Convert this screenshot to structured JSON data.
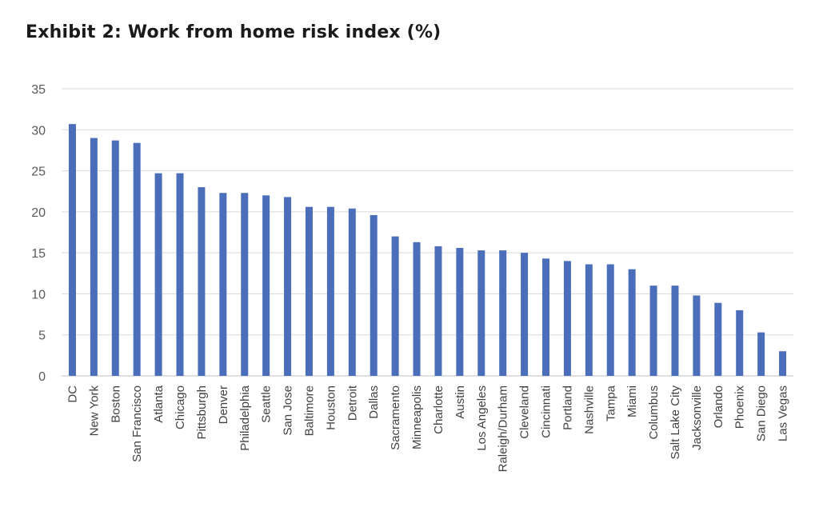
{
  "title": "Exhibit 2: Work from home risk index (%)",
  "colors": {
    "bar": "#4A6EBA",
    "grid": "#D9D9D9",
    "axis": "#BFBFBF"
  },
  "chart_data": {
    "type": "bar",
    "title": "Exhibit 2: Work from home risk index (%)",
    "xlabel": "",
    "ylabel": "",
    "ylim": [
      0,
      35
    ],
    "yticks": [
      0,
      5,
      10,
      15,
      20,
      25,
      30,
      35
    ],
    "grid": true,
    "legend": "none",
    "categories": [
      "DC",
      "New York",
      "Boston",
      "San Francisco",
      "Atlanta",
      "Chicago",
      "Pittsburgh",
      "Denver",
      "Philadelphia",
      "Seattle",
      "San Jose",
      "Baltimore",
      "Houston",
      "Detroit",
      "Dallas",
      "Sacramento",
      "Minneapolis",
      "Charlotte",
      "Austin",
      "Los Angeles",
      "Raleigh/Durham",
      "Cleveland",
      "Cincinnati",
      "Portland",
      "Nashville",
      "Tampa",
      "Miami",
      "Columbus",
      "Salt Lake City",
      "Jacksonville",
      "Orlando",
      "Phoenix",
      "San Diego",
      "Las Vegas"
    ],
    "values": [
      30.7,
      29.0,
      28.7,
      28.4,
      24.7,
      24.7,
      23.0,
      22.3,
      22.3,
      22.0,
      21.8,
      20.6,
      20.6,
      20.4,
      19.6,
      17.0,
      16.3,
      15.8,
      15.6,
      15.3,
      15.3,
      15.0,
      14.3,
      14.0,
      13.6,
      13.6,
      13.0,
      11.0,
      11.0,
      9.8,
      8.9,
      8.0,
      5.3,
      3.0
    ]
  }
}
